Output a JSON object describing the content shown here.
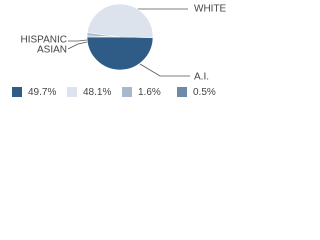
{
  "chart_data": {
    "type": "pie",
    "categories": [
      "A.I.",
      "WHITE",
      "HISPANIC",
      "ASIAN"
    ],
    "values": [
      49.7,
      48.1,
      1.6,
      0.5
    ],
    "value_labels": [
      "49.7%",
      "48.1%",
      "1.6%",
      "0.5%"
    ],
    "colors": [
      "#2e5c87",
      "#dce3ed",
      "#a8b8cc",
      "#6d8aab"
    ]
  }
}
